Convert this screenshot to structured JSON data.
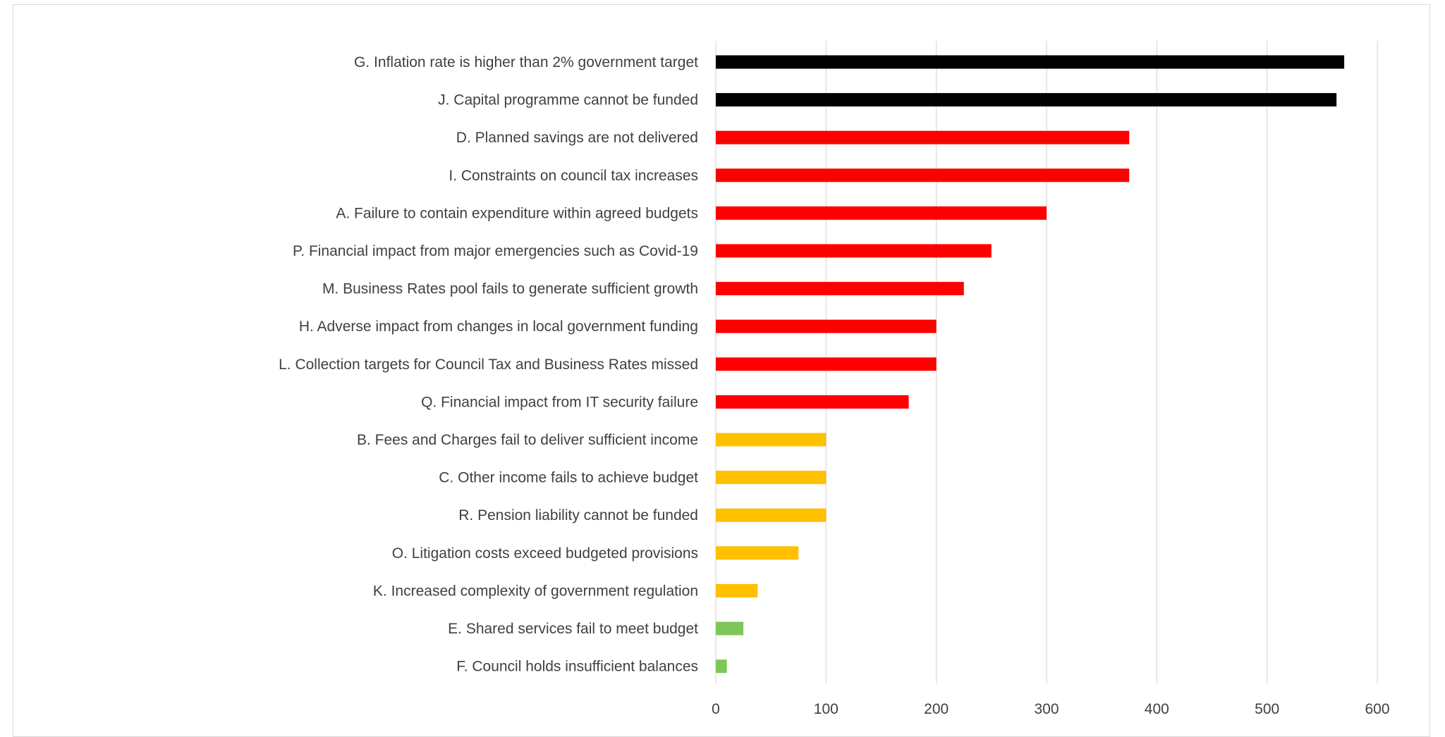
{
  "chart_data": {
    "type": "bar",
    "orientation": "horizontal",
    "title": "",
    "xlabel": "",
    "ylabel": "",
    "xlim": [
      0,
      600
    ],
    "x_ticks": [
      0,
      100,
      200,
      300,
      400,
      500,
      600
    ],
    "grid": "vertical",
    "legend": "none",
    "categories": [
      "G. Inflation rate is higher than 2% government target",
      "J. Capital programme cannot be funded",
      "D. Planned savings are not delivered",
      "I. Constraints on council tax increases",
      "A. Failure to contain expenditure within agreed budgets",
      "P. Financial impact from major emergencies such as Covid-19",
      "M. Business Rates pool fails to generate sufficient growth",
      "H. Adverse impact from changes in local government funding",
      "L. Collection targets for Council Tax and Business Rates missed",
      "Q. Financial impact from IT security failure",
      "B. Fees and Charges fail to deliver sufficient income",
      "C. Other income fails to achieve budget",
      "R. Pension liability cannot be funded",
      "O. Litigation costs exceed budgeted provisions",
      "K. Increased complexity of government regulation",
      "E. Shared services fail to meet budget",
      "F. Council holds insufficient balances"
    ],
    "values": [
      570,
      563,
      375,
      375,
      300,
      250,
      225,
      200,
      200,
      175,
      100,
      100,
      100,
      75,
      38,
      25,
      10
    ],
    "bar_colors": [
      "#000000",
      "#000000",
      "#ff0000",
      "#ff0000",
      "#ff0000",
      "#ff0000",
      "#ff0000",
      "#ff0000",
      "#ff0000",
      "#ff0000",
      "#ffc000",
      "#ffc000",
      "#ffc000",
      "#ffc000",
      "#ffc000",
      "#7fc65a",
      "#7fc65a"
    ]
  }
}
